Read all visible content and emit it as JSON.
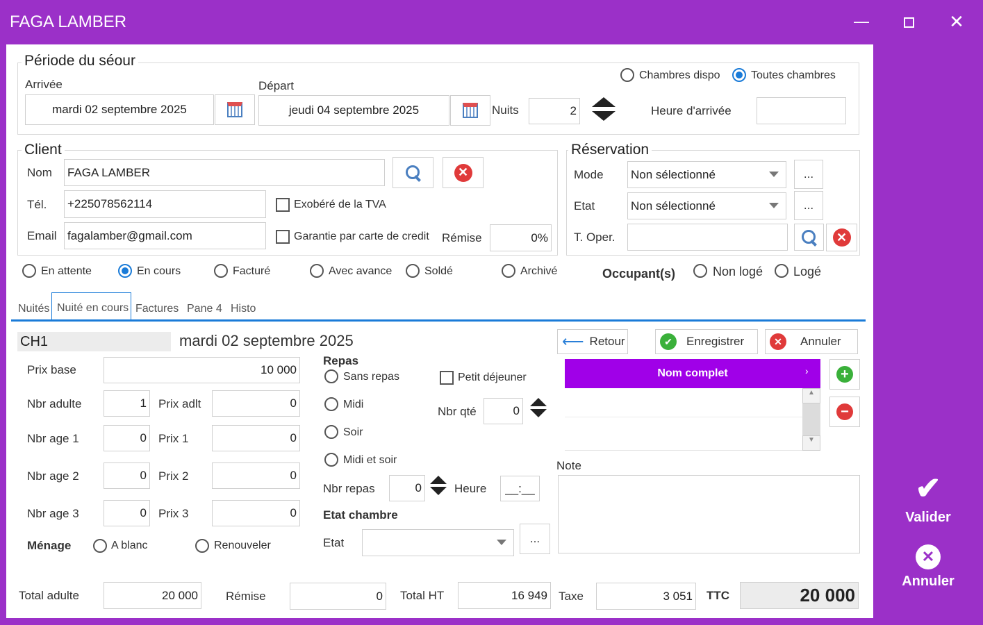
{
  "window": {
    "title": "FAGA LAMBER",
    "minimize_icon": "minimize-icon",
    "maximize_icon": "maximize-icon",
    "close_icon": "close-icon"
  },
  "periode": {
    "title": "Période du séour",
    "arrivee_label": "Arrivée",
    "arrivee_value": "mardi 02 septembre 2025",
    "depart_label": "Départ",
    "depart_value": "jeudi 04 septembre 2025",
    "nuits_label": "Nuits",
    "nuits_value": "2",
    "heure_label": "Heure d'arrivée",
    "heure_value": "",
    "chambres_dispo": "Chambres dispo",
    "toutes_chambres": "Toutes chambres",
    "toutes_selected": true
  },
  "client": {
    "title": "Client",
    "nom_label": "Nom",
    "nom_value": "FAGA LAMBER",
    "tel_label": "Tél.",
    "tel_value": "+225078562114",
    "email_label": "Email",
    "email_value": "fagalamber@gmail.com",
    "exonere": "Exobéré de la TVA",
    "garantie": "Garantie par carte de credit",
    "remise_label": "Rémise",
    "remise_value": "0%"
  },
  "reservation": {
    "title": "Réservation",
    "mode_label": "Mode",
    "mode_value": "Non sélectionné",
    "etat_label": "Etat",
    "etat_value": "Non sélectionné",
    "toper_label": "T. Oper.",
    "toper_value": "",
    "more": "..."
  },
  "status": {
    "options": [
      "En attente",
      "En cours",
      "Facturé",
      "Avec avance",
      "Soldé",
      "Archivé"
    ],
    "selected": "En cours"
  },
  "occupants": {
    "label": "Occupant(s)",
    "non_loge": "Non logé",
    "loge": "Logé"
  },
  "tabs": [
    "Nuités",
    "Nuité en cours",
    "Factures",
    "Pane 4",
    "Histo"
  ],
  "active_tab": "Nuité en cours",
  "nuite": {
    "room": "CH1",
    "date": "mardi 02 septembre 2025",
    "prix_base_label": "Prix base",
    "prix_base": "10 000",
    "nbr_adulte_label": "Nbr adulte",
    "nbr_adulte": "1",
    "prix_adlt_label": "Prix adlt",
    "prix_adlt": "0",
    "nbr_age1_label": "Nbr age 1",
    "nbr_age1": "0",
    "prix1_label": "Prix 1",
    "prix1": "0",
    "nbr_age2_label": "Nbr age 2",
    "nbr_age2": "0",
    "prix2_label": "Prix 2",
    "prix2": "0",
    "nbr_age3_label": "Nbr age 3",
    "nbr_age3": "0",
    "prix3_label": "Prix 3",
    "prix3": "0",
    "menage_label": "Ménage",
    "a_blanc": "A blanc",
    "renouveler": "Renouveler"
  },
  "repas": {
    "title": "Repas",
    "options": [
      "Sans repas",
      "Midi",
      "Soir",
      "Midi et soir"
    ],
    "petit_dej": "Petit déjeuner",
    "nbr_qte_label": "Nbr qté",
    "nbr_qte": "0",
    "nbr_repas_label": "Nbr repas",
    "nbr_repas": "0",
    "heure_label": "Heure",
    "heure_value": "__:__"
  },
  "etat_chambre": {
    "title": "Etat chambre",
    "etat_label": "Etat",
    "etat_value": "",
    "more": "..."
  },
  "actions": {
    "retour": "Retour",
    "enregistrer": "Enregistrer",
    "annuler": "Annuler"
  },
  "occupant_grid": {
    "header": "Nom complet",
    "header_color": "#a000e8"
  },
  "note": {
    "label": "Note",
    "value": ""
  },
  "totals": {
    "total_adulte_label": "Total adulte",
    "total_adulte": "20 000",
    "remise_label": "Rémise",
    "remise": "0",
    "total_ht_label": "Total HT",
    "total_ht": "16 949",
    "taxe_label": "Taxe",
    "taxe": "3 051",
    "ttc_label": "TTC",
    "ttc": "20 000"
  },
  "side": {
    "valider": "Valider",
    "annuler": "Annuler"
  }
}
